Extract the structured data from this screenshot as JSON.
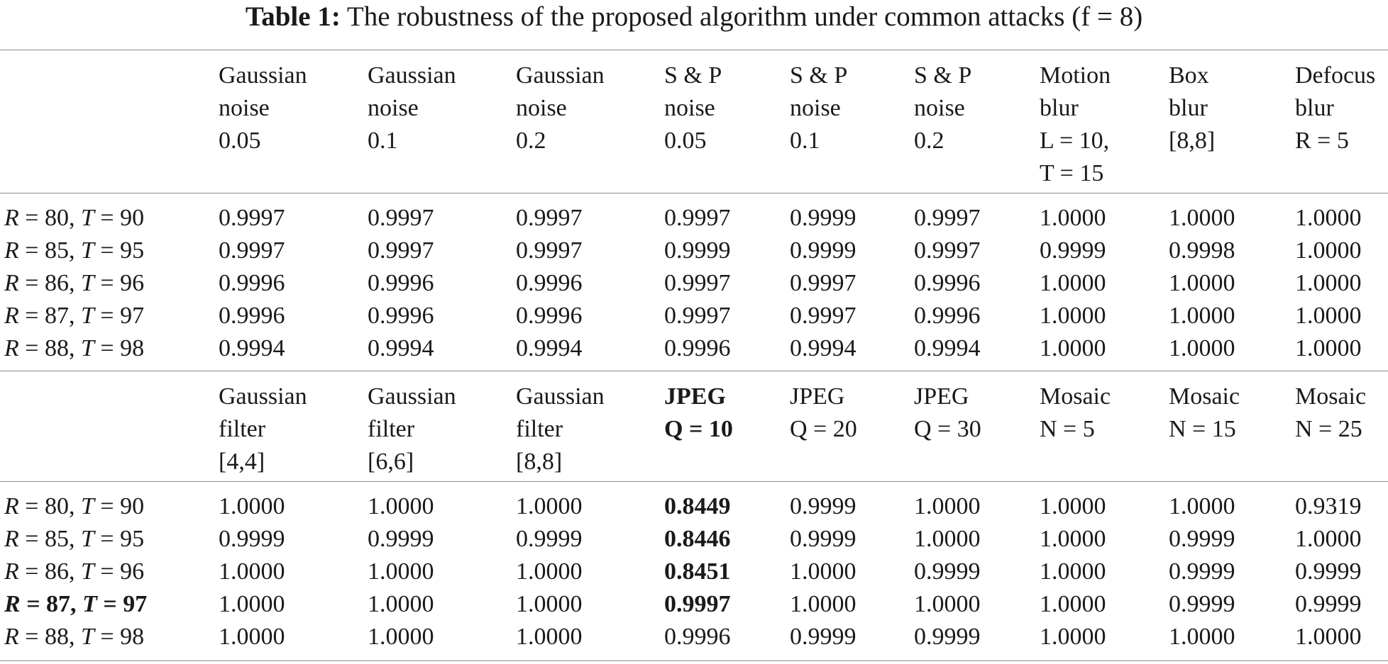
{
  "caption": {
    "lead": "Table 1:",
    "text": "The robustness of the proposed algorithm under common attacks (f = 8)"
  },
  "sections": [
    {
      "columns": [
        [
          "Gaussian",
          "noise",
          "0.05"
        ],
        [
          "Gaussian",
          "noise",
          "0.1"
        ],
        [
          "Gaussian",
          "noise",
          "0.2"
        ],
        [
          "S & P",
          "noise",
          "0.05"
        ],
        [
          "S & P",
          "noise",
          "0.1"
        ],
        [
          "S & P",
          "noise",
          "0.2"
        ],
        [
          "Motion",
          "blur",
          "L = 10,",
          "T = 15"
        ],
        [
          "Box",
          "blur",
          "[8,8]"
        ],
        [
          "Defocus",
          "blur",
          "R = 5"
        ]
      ],
      "rows": [
        {
          "label": "R = 80, T = 90",
          "values": [
            "0.9997",
            "0.9997",
            "0.9997",
            "0.9997",
            "0.9999",
            "0.9997",
            "1.0000",
            "1.0000",
            "1.0000"
          ]
        },
        {
          "label": "R = 85, T = 95",
          "values": [
            "0.9997",
            "0.9997",
            "0.9997",
            "0.9999",
            "0.9999",
            "0.9997",
            "0.9999",
            "0.9998",
            "1.0000"
          ]
        },
        {
          "label": "R = 86, T = 96",
          "values": [
            "0.9996",
            "0.9996",
            "0.9996",
            "0.9997",
            "0.9997",
            "0.9996",
            "1.0000",
            "1.0000",
            "1.0000"
          ]
        },
        {
          "label": "R = 87, T = 97",
          "values": [
            "0.9996",
            "0.9996",
            "0.9996",
            "0.9997",
            "0.9997",
            "0.9996",
            "1.0000",
            "1.0000",
            "1.0000"
          ]
        },
        {
          "label": "R = 88, T = 98",
          "values": [
            "0.9994",
            "0.9994",
            "0.9994",
            "0.9996",
            "0.9994",
            "0.9994",
            "1.0000",
            "1.0000",
            "1.0000"
          ]
        }
      ]
    },
    {
      "columns": [
        [
          "Gaussian",
          "filter",
          "[4,4]"
        ],
        [
          "Gaussian",
          "filter",
          "[6,6]"
        ],
        [
          "Gaussian",
          "filter",
          "[8,8]"
        ],
        [
          "JPEG",
          "Q = 10"
        ],
        [
          "JPEG",
          "Q = 20"
        ],
        [
          "JPEG",
          "Q = 30"
        ],
        [
          "Mosaic",
          "N = 5"
        ],
        [
          "Mosaic",
          "N = 15"
        ],
        [
          "Mosaic",
          "N = 25"
        ]
      ],
      "rows": [
        {
          "label": "R = 80, T = 90",
          "values": [
            "1.0000",
            "1.0000",
            "1.0000",
            "0.8449",
            "0.9999",
            "1.0000",
            "1.0000",
            "1.0000",
            "0.9319"
          ]
        },
        {
          "label": "R = 85, T = 95",
          "values": [
            "0.9999",
            "0.9999",
            "0.9999",
            "0.8446",
            "0.9999",
            "1.0000",
            "1.0000",
            "0.9999",
            "1.0000"
          ]
        },
        {
          "label": "R = 86, T = 96",
          "values": [
            "1.0000",
            "1.0000",
            "1.0000",
            "0.8451",
            "1.0000",
            "0.9999",
            "1.0000",
            "0.9999",
            "0.9999"
          ]
        },
        {
          "label": "R = 87, T = 97",
          "values": [
            "1.0000",
            "1.0000",
            "1.0000",
            "0.9997",
            "1.0000",
            "1.0000",
            "1.0000",
            "0.9999",
            "0.9999"
          ]
        },
        {
          "label": "R = 88, T = 98",
          "values": [
            "1.0000",
            "1.0000",
            "1.0000",
            "0.9996",
            "0.9999",
            "0.9999",
            "1.0000",
            "1.0000",
            "1.0000"
          ]
        }
      ]
    }
  ]
}
